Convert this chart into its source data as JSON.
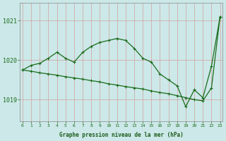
{
  "series1": {
    "x": [
      0,
      1,
      2,
      3,
      4,
      5,
      6,
      7,
      8,
      9,
      10,
      11,
      12,
      13,
      14,
      15,
      16,
      17,
      18,
      19,
      20,
      21,
      22,
      23
    ],
    "y": [
      1019.75,
      1019.87,
      1019.92,
      1020.05,
      1020.2,
      1020.05,
      1019.95,
      1020.2,
      1020.35,
      1020.45,
      1020.5,
      1020.55,
      1020.5,
      1020.3,
      1020.05,
      1019.95,
      1019.65,
      1019.5,
      1019.35,
      1018.82,
      1019.25,
      1019.05,
      1019.85,
      1021.1
    ]
  },
  "series2": {
    "x": [
      0,
      1,
      2,
      3,
      4,
      5,
      6,
      7,
      8,
      9,
      10,
      11,
      12,
      13,
      14,
      15,
      16,
      17,
      18,
      19,
      20,
      21,
      22,
      23
    ],
    "y": [
      1019.75,
      1019.72,
      1019.68,
      1019.65,
      1019.62,
      1019.58,
      1019.55,
      1019.52,
      1019.48,
      1019.45,
      1019.4,
      1019.37,
      1019.33,
      1019.3,
      1019.27,
      1019.22,
      1019.18,
      1019.15,
      1019.1,
      1019.05,
      1019.0,
      1018.97,
      1019.3,
      1021.1
    ]
  },
  "line_color": "#1a6b1a",
  "bg_color": "#cce8e8",
  "grid_color": "#d4a0a0",
  "xlabel": "Graphe pression niveau de la mer (hPa)",
  "ylabel_ticks": [
    1019,
    1020,
    1021
  ],
  "xlim": [
    -0.3,
    23.3
  ],
  "ylim": [
    1018.45,
    1021.45
  ],
  "xlabel_color": "#1a5c1a",
  "tick_color": "#1a6b1a"
}
